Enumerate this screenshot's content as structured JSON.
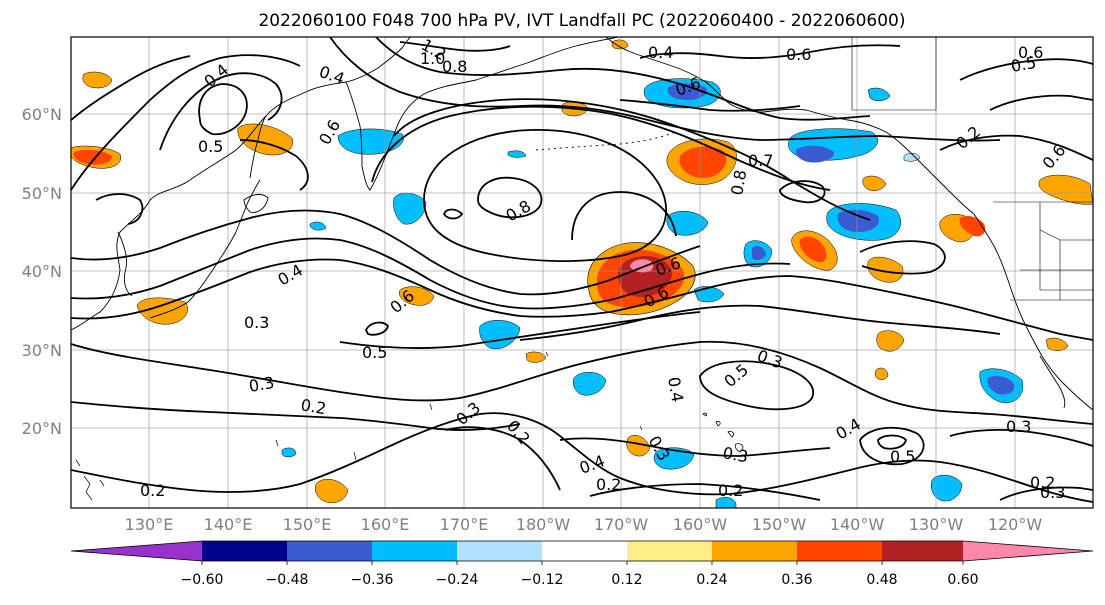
{
  "title": "2022060100 F048 700 hPa PV, IVT Landfall PC (2022060400 - 2022060600)",
  "map": {
    "lat_ticks": [
      "60°N",
      "50°N",
      "40°N",
      "30°N",
      "20°N"
    ],
    "lon_ticks": [
      "130°E",
      "140°E",
      "150°E",
      "160°E",
      "170°E",
      "180°W",
      "170°W",
      "160°W",
      "150°W",
      "140°W",
      "130°W",
      "120°W"
    ],
    "tick_color": "#808080",
    "extent": {
      "lon_min": 120,
      "lon_max": 250,
      "lat_min": 10,
      "lat_max": 70
    }
  },
  "contours": {
    "color": "#000000",
    "labels": [
      {
        "text": "0.4"
      },
      {
        "text": "0.4"
      },
      {
        "text": "0.5"
      },
      {
        "text": "0.6"
      },
      {
        "text": "1.0"
      },
      {
        "text": "0.8"
      },
      {
        "text": "1.2"
      },
      {
        "text": "0.4"
      },
      {
        "text": "0.6"
      },
      {
        "text": "0.6"
      },
      {
        "text": "0.8"
      },
      {
        "text": "0.7"
      },
      {
        "text": "0.8"
      },
      {
        "text": "0.6"
      },
      {
        "text": "0.6"
      },
      {
        "text": "0.4"
      },
      {
        "text": "0.3"
      },
      {
        "text": "0.6"
      },
      {
        "text": "0.5"
      },
      {
        "text": "0.3"
      },
      {
        "text": "0.2"
      },
      {
        "text": "0.3"
      },
      {
        "text": "0.5"
      },
      {
        "text": "0.4"
      },
      {
        "text": "0.3"
      },
      {
        "text": "0.2"
      },
      {
        "text": "0.3"
      },
      {
        "text": "0.4"
      },
      {
        "text": "0.2"
      },
      {
        "text": "0.2"
      },
      {
        "text": "0.3"
      },
      {
        "text": "0.2"
      },
      {
        "text": "0.4"
      },
      {
        "text": "0.5"
      },
      {
        "text": "0.3"
      },
      {
        "text": "0.2"
      },
      {
        "text": "0.3"
      },
      {
        "text": "0.2"
      },
      {
        "text": "0.6"
      },
      {
        "text": "0.5"
      },
      {
        "text": "0.6"
      }
    ]
  },
  "colorbar": {
    "ticks": [
      "−0.60",
      "−0.48",
      "−0.36",
      "−0.24",
      "−0.12",
      "0.12",
      "0.24",
      "0.36",
      "0.48",
      "0.60"
    ],
    "colors": [
      "#9932cc",
      "#00008b",
      "#3a5bd1",
      "#00bfff",
      "#b0e2ff",
      "#ffffff",
      "#ffee88",
      "#ffa500",
      "#ff4500",
      "#b22222",
      "#ff88aa"
    ]
  },
  "shading_colors": {
    "neg_1": "#b0e2ff",
    "neg_2": "#00bfff",
    "neg_3": "#3a5bd1",
    "pos_1": "#ffee88",
    "pos_2": "#ffa500",
    "pos_3": "#ff4500",
    "pos_4": "#b22222",
    "pos_5": "#ff88aa"
  }
}
